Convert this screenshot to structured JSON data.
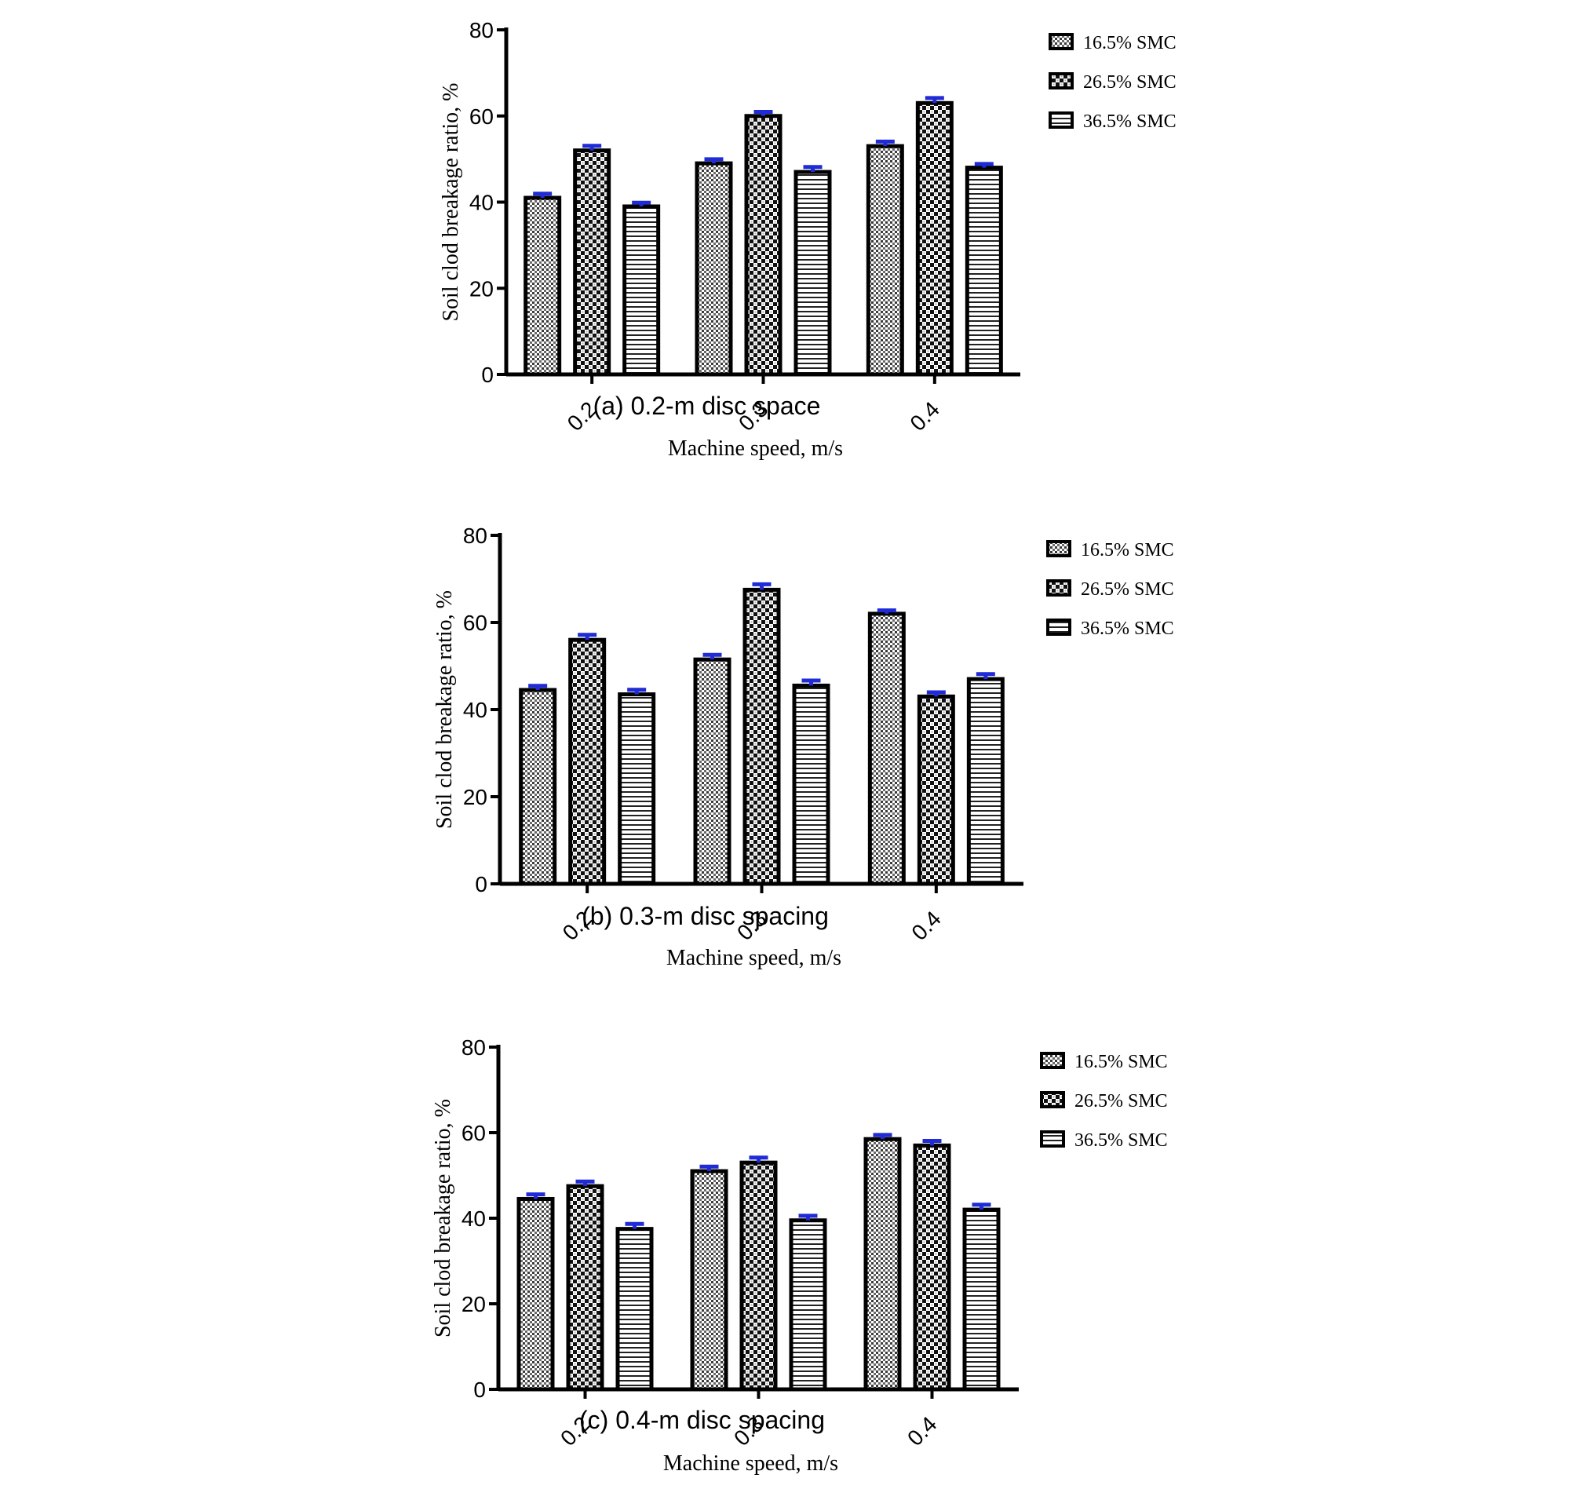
{
  "chart_data": [
    {
      "type": "bar",
      "caption": "(a)  0.2-m  disc  space",
      "categories": [
        "0.2",
        "0.3",
        "0.4"
      ],
      "series": [
        {
          "name": "16.5% SMC",
          "values": [
            41,
            49,
            53
          ],
          "errors": [
            0.6,
            0.6,
            0.7
          ],
          "pattern": "p165"
        },
        {
          "name": "26.5% SMC",
          "values": [
            52,
            60,
            63
          ],
          "errors": [
            0.7,
            0.6,
            0.8
          ],
          "pattern": "p265"
        },
        {
          "name": "36.5% SMC",
          "values": [
            39,
            47,
            48
          ],
          "errors": [
            0.5,
            0.8,
            0.5
          ],
          "pattern": "p365"
        }
      ],
      "xlabel": "Machine speed, m/s",
      "ylabel": "Soil clod breakage ratio, %",
      "ylim": [
        0,
        80
      ],
      "yticks": [
        "0",
        "20",
        "40",
        "60",
        "80"
      ],
      "legend_position": "top-right",
      "grid": false
    },
    {
      "type": "bar",
      "caption": "(b)  0.3-m  disc  spacing",
      "categories": [
        "0.2",
        "0.3",
        "0.4"
      ],
      "series": [
        {
          "name": "16.5% SMC",
          "values": [
            44.5,
            51.5,
            62
          ],
          "errors": [
            0.6,
            0.7,
            0.4
          ],
          "pattern": "p165"
        },
        {
          "name": "26.5% SMC",
          "values": [
            56,
            67.5,
            43
          ],
          "errors": [
            0.8,
            0.9,
            0.6
          ],
          "pattern": "p265"
        },
        {
          "name": "36.5% SMC",
          "values": [
            43.5,
            45.5,
            47
          ],
          "errors": [
            0.7,
            0.8,
            0.8
          ],
          "pattern": "p365"
        }
      ],
      "xlabel": "Machine speed, m/s",
      "ylabel": "Soil clod breakage ratio, %",
      "ylim": [
        0,
        80
      ],
      "yticks": [
        "0",
        "20",
        "40",
        "60",
        "80"
      ],
      "legend_position": "top-right",
      "grid": false
    },
    {
      "type": "bar",
      "caption": "(c)  0.4-m  disc  spacing",
      "categories": [
        "0.2",
        "0.3",
        "0.4"
      ],
      "series": [
        {
          "name": "16.5% SMC",
          "values": [
            44.5,
            51,
            58.5
          ],
          "errors": [
            0.7,
            0.7,
            0.6
          ],
          "pattern": "p165"
        },
        {
          "name": "26.5% SMC",
          "values": [
            47.5,
            53,
            57
          ],
          "errors": [
            0.7,
            0.8,
            0.7
          ],
          "pattern": "p265"
        },
        {
          "name": "36.5% SMC",
          "values": [
            37.5,
            39.5,
            42
          ],
          "errors": [
            0.8,
            0.7,
            0.8
          ],
          "pattern": "p365"
        }
      ],
      "xlabel": "Machine speed, m/s",
      "ylabel": "Soil clod breakage ratio, %",
      "ylim": [
        0,
        80
      ],
      "yticks": [
        "0",
        "20",
        "40",
        "60",
        "80"
      ],
      "legend_position": "top-right",
      "grid": false
    }
  ],
  "colors": {
    "error_bar": "#1f2bd6",
    "bar_stroke": "#000000"
  }
}
